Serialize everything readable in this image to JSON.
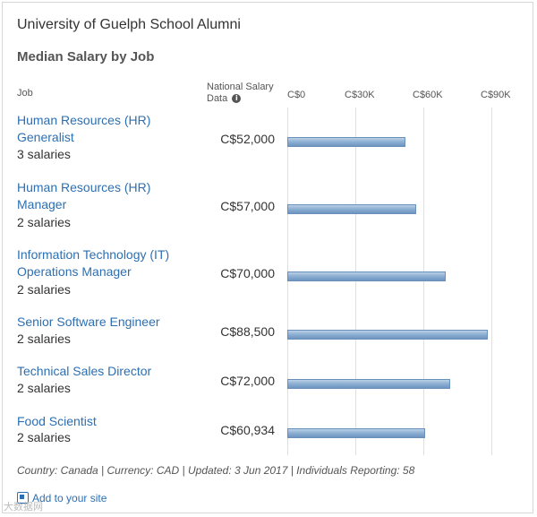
{
  "header": {
    "school": "University of Guelph School Alumni",
    "chart_title": "Median Salary by Job"
  },
  "columns": {
    "job": "Job",
    "national": "National Salary Data",
    "info_glyph": "i"
  },
  "chart_data": {
    "type": "bar",
    "orientation": "horizontal",
    "title": "Median Salary by Job",
    "xlim": [
      0,
      90000
    ],
    "ticks": [
      {
        "value": 0,
        "label": "C$0"
      },
      {
        "value": 30000,
        "label": "C$30K"
      },
      {
        "value": 60000,
        "label": "C$60K"
      },
      {
        "value": 90000,
        "label": "C$90K"
      }
    ],
    "grid": true,
    "items": [
      {
        "job": "Human Resources (HR) Generalist",
        "count": "3 salaries",
        "value": 52000,
        "label": "C$52,000"
      },
      {
        "job": "Human Resources (HR) Manager",
        "count": "2 salaries",
        "value": 57000,
        "label": "C$57,000"
      },
      {
        "job": "Information Technology (IT) Operations Manager",
        "count": "2 salaries",
        "value": 70000,
        "label": "C$70,000"
      },
      {
        "job": "Senior Software Engineer",
        "count": "2 salaries",
        "value": 88500,
        "label": "C$88,500"
      },
      {
        "job": "Technical Sales Director",
        "count": "2 salaries",
        "value": 72000,
        "label": "C$72,000"
      },
      {
        "job": "Food Scientist",
        "count": "2 salaries",
        "value": 60934,
        "label": "C$60,934"
      }
    ],
    "bar_color": "#8fb1d3"
  },
  "footer": {
    "note": "Country: Canada | Currency: CAD | Updated: 3 Jun 2017 | Individuals Reporting: 58",
    "add_link": "Add to your site"
  },
  "watermark": "大数据网"
}
